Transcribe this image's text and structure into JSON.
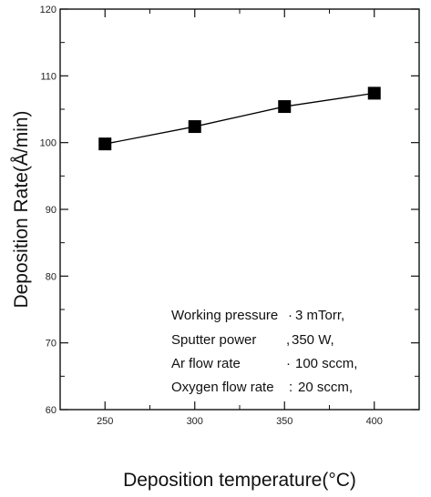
{
  "chart_data": {
    "type": "line",
    "x": [
      250,
      300,
      350,
      400
    ],
    "y": [
      99.8,
      102.4,
      105.4,
      107.4
    ],
    "xlabel": "Deposition temperature(°C)",
    "ylabel": "Deposition Rate(Å/min)",
    "xlim": [
      225,
      425
    ],
    "ylim": [
      60,
      120
    ],
    "xticks": [
      250,
      300,
      350,
      400
    ],
    "yticks": [
      60,
      70,
      80,
      90,
      100,
      110,
      120
    ],
    "marker": "square",
    "color": "#000000",
    "grid": false,
    "annotations": [
      {
        "label": "Working pressure",
        "value": "3 mTorr,",
        "sep": "·"
      },
      {
        "label": "Sputter power",
        "value": "350 W,",
        "sep": ","
      },
      {
        "label": "Ar flow rate",
        "value": "100 sccm,",
        "sep": "·"
      },
      {
        "label": "Oxygen flow rate",
        "value": "20 sccm,",
        "sep": ":"
      }
    ]
  }
}
